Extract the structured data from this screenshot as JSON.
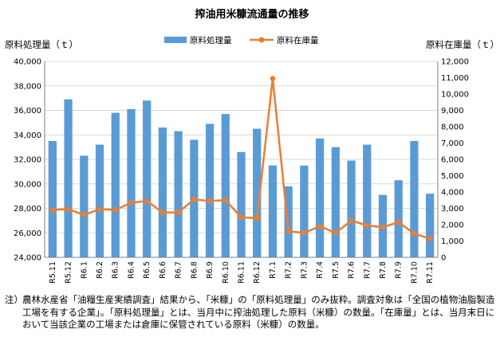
{
  "chart_data": {
    "type": "bar+line",
    "title": "搾油用米糠流通量の推移",
    "ylabel_left": "原料処理量（ｔ）",
    "ylabel_right": "原料在庫量（ｔ）",
    "y_left": {
      "min": 24000,
      "max": 40000,
      "step": 2000,
      "tick_labels": [
        "24,000",
        "26,000",
        "28,000",
        "30,000",
        "32,000",
        "34,000",
        "36,000",
        "38,000",
        "40,000"
      ]
    },
    "y_right": {
      "min": 0,
      "max": 12000,
      "step": 1000,
      "tick_labels": [
        "0",
        "1,000",
        "2,000",
        "3,000",
        "4,000",
        "5,000",
        "6,000",
        "7,000",
        "8,000",
        "9,000",
        "10,000",
        "11,000",
        "12,000"
      ]
    },
    "grid": true,
    "legend_position": "top",
    "categories": [
      "R5.11",
      "R5.12",
      "R6.1",
      "R6.2",
      "R6.3",
      "R6.4",
      "R6.5",
      "R6.6",
      "R6.7",
      "R6.8",
      "R6.9",
      "R6.10",
      "R6.11",
      "R6.12",
      "R7.1",
      "R7.2",
      "R7.3",
      "R7.4",
      "R7.5",
      "R7.6",
      "R7.7",
      "R7.8",
      "R7.9",
      "R7.10",
      "R7.11"
    ],
    "series": [
      {
        "name": "原料処理量",
        "type": "bar",
        "axis": "left",
        "color": "#5b9bd5",
        "values": [
          33500,
          36900,
          32300,
          33200,
          35800,
          36100,
          36800,
          34600,
          34300,
          33600,
          34900,
          35700,
          32600,
          34500,
          31500,
          29800,
          31500,
          33700,
          33000,
          31900,
          33200,
          29100,
          30300,
          33500,
          29200
        ]
      },
      {
        "name": "原料在庫量",
        "type": "line",
        "axis": "right",
        "color": "#ed7d31",
        "values": [
          2900,
          2950,
          2600,
          2950,
          2900,
          3350,
          3450,
          2750,
          2750,
          3550,
          3450,
          3500,
          2450,
          2400,
          10950,
          1600,
          1500,
          1900,
          1500,
          2250,
          1950,
          1850,
          2150,
          1450,
          1150
        ]
      }
    ]
  },
  "note": {
    "prefix": "注）",
    "text": "農林水産省「油糧生産実績調査」結果から、「米糠」の「原料処理量」のみ抜粋。調査対象は「全国の植物油脂製造工場を有する企業」。「原料処理量」とは、当月中に搾油処理した原料（米糠）の数量。「在庫量」とは、当月末日において当該企業の工場または倉庫に保管されている原料（米糠）の数量。"
  }
}
